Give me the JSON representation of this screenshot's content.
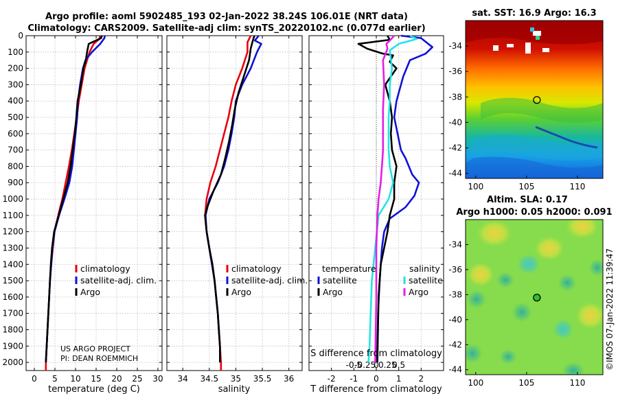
{
  "header": {
    "line1": "Argo profile: aoml 5902485_193 02-Jan-2022 38.24S 106.01E (NRT data)",
    "line2": "Climatology: CARS2009. Satellite-adj clim: synTS_20220102.nc (0.077d earlier)"
  },
  "colors": {
    "climatology": "#e8000b",
    "satellite": "#1010d8",
    "argo": "#000000",
    "sat_sal": "#22e4e4",
    "argo_sal": "#e41ee4"
  },
  "chart_data": [
    {
      "id": "temperature",
      "type": "line",
      "xlabel": "temperature (deg C)",
      "xlim": [
        -2,
        31
      ],
      "xticks": [
        0,
        5,
        10,
        15,
        20,
        25,
        30
      ],
      "ylim": [
        0,
        2050
      ],
      "yticks": [
        0,
        100,
        200,
        300,
        400,
        500,
        600,
        700,
        800,
        900,
        1000,
        1100,
        1200,
        1300,
        1400,
        1500,
        1600,
        1700,
        1800,
        1900,
        2000
      ],
      "legend": [
        "climatology",
        "satellite-adj. clim.",
        "Argo"
      ],
      "notes": [
        "US ARGO PROJECT",
        "PI: DEAN ROEMMICH"
      ],
      "series": [
        {
          "name": "climatology",
          "color": "#e8000b",
          "points": [
            [
              16.0,
              0
            ],
            [
              15.8,
              20
            ],
            [
              14.4,
              50
            ],
            [
              13.4,
              100
            ],
            [
              12.8,
              150
            ],
            [
              12.2,
              200
            ],
            [
              11.5,
              300
            ],
            [
              10.8,
              400
            ],
            [
              10.3,
              500
            ],
            [
              9.7,
              600
            ],
            [
              9.1,
              700
            ],
            [
              8.4,
              800
            ],
            [
              7.6,
              900
            ],
            [
              6.8,
              1000
            ],
            [
              5.8,
              1100
            ],
            [
              4.9,
              1200
            ],
            [
              4.5,
              1300
            ],
            [
              4.1,
              1400
            ],
            [
              3.8,
              1500
            ],
            [
              3.6,
              1600
            ],
            [
              3.4,
              1700
            ],
            [
              3.2,
              1800
            ],
            [
              3.0,
              1900
            ],
            [
              2.8,
              2000
            ],
            [
              2.8,
              2050
            ]
          ]
        },
        {
          "name": "satellite-adj. clim.",
          "color": "#1010d8",
          "points": [
            [
              17.1,
              0
            ],
            [
              17.0,
              15
            ],
            [
              16.0,
              50
            ],
            [
              14.0,
              100
            ],
            [
              12.4,
              150
            ],
            [
              11.8,
              200
            ],
            [
              11.1,
              300
            ],
            [
              10.6,
              400
            ],
            [
              10.4,
              500
            ],
            [
              10.0,
              600
            ],
            [
              9.6,
              700
            ],
            [
              9.2,
              800
            ],
            [
              8.5,
              900
            ],
            [
              7.3,
              1000
            ],
            [
              6.0,
              1100
            ],
            [
              4.9,
              1200
            ],
            [
              4.4,
              1300
            ],
            [
              4.1,
              1400
            ],
            [
              3.8,
              1500
            ],
            [
              3.6,
              1600
            ],
            [
              3.4,
              1700
            ],
            [
              3.2,
              1800
            ],
            [
              3.0,
              1900
            ],
            [
              2.8,
              2000
            ]
          ]
        },
        {
          "name": "Argo",
          "color": "#000000",
          "points": [
            [
              16.4,
              0
            ],
            [
              16.2,
              15
            ],
            [
              13.2,
              50
            ],
            [
              12.8,
              100
            ],
            [
              12.5,
              150
            ],
            [
              11.9,
              200
            ],
            [
              11.3,
              300
            ],
            [
              10.5,
              400
            ],
            [
              10.2,
              500
            ],
            [
              9.8,
              600
            ],
            [
              9.3,
              700
            ],
            [
              8.8,
              800
            ],
            [
              8.1,
              900
            ],
            [
              7.0,
              1000
            ],
            [
              5.9,
              1100
            ],
            [
              4.8,
              1200
            ],
            [
              4.3,
              1300
            ],
            [
              4.0,
              1400
            ],
            [
              3.8,
              1500
            ],
            [
              3.6,
              1600
            ],
            [
              3.4,
              1700
            ],
            [
              3.2,
              1800
            ],
            [
              3.0,
              1900
            ],
            [
              2.8,
              2000
            ]
          ]
        }
      ]
    },
    {
      "id": "salinity",
      "type": "line",
      "xlabel": "salinity",
      "xlim": [
        33.7,
        36.25
      ],
      "xticks": [
        34,
        34.5,
        35,
        35.5,
        36
      ],
      "xticklabels": [
        "34",
        "34.5",
        "35",
        "35.5",
        "36"
      ],
      "ylim": [
        0,
        2050
      ],
      "legend": [
        "climatology",
        "satellite-adj. clim.",
        "Argo"
      ],
      "series": [
        {
          "name": "climatology",
          "color": "#e8000b",
          "points": [
            [
              35.28,
              0
            ],
            [
              35.22,
              40
            ],
            [
              35.22,
              100
            ],
            [
              35.12,
              200
            ],
            [
              35.0,
              300
            ],
            [
              34.92,
              400
            ],
            [
              34.86,
              500
            ],
            [
              34.78,
              600
            ],
            [
              34.7,
              700
            ],
            [
              34.62,
              800
            ],
            [
              34.52,
              900
            ],
            [
              34.45,
              1000
            ],
            [
              34.42,
              1100
            ],
            [
              34.45,
              1200
            ],
            [
              34.5,
              1300
            ],
            [
              34.55,
              1400
            ],
            [
              34.6,
              1500
            ],
            [
              34.63,
              1600
            ],
            [
              34.66,
              1700
            ],
            [
              34.68,
              1800
            ],
            [
              34.7,
              1900
            ],
            [
              34.72,
              2000
            ],
            [
              34.72,
              2050
            ]
          ]
        },
        {
          "name": "satellite-adj. clim.",
          "color": "#1010d8",
          "points": [
            [
              35.43,
              0
            ],
            [
              35.36,
              30
            ],
            [
              35.48,
              50
            ],
            [
              35.4,
              100
            ],
            [
              35.28,
              200
            ],
            [
              35.12,
              300
            ],
            [
              35.0,
              400
            ],
            [
              34.97,
              500
            ],
            [
              34.92,
              600
            ],
            [
              34.86,
              700
            ],
            [
              34.78,
              800
            ],
            [
              34.66,
              900
            ],
            [
              34.5,
              1000
            ],
            [
              34.43,
              1100
            ],
            [
              34.45,
              1200
            ],
            [
              34.5,
              1300
            ],
            [
              34.55,
              1400
            ],
            [
              34.6,
              1500
            ],
            [
              34.63,
              1600
            ],
            [
              34.66,
              1700
            ],
            [
              34.68,
              1800
            ],
            [
              34.7,
              1900
            ],
            [
              34.7,
              2000
            ]
          ]
        },
        {
          "name": "Argo",
          "color": "#000000",
          "points": [
            [
              35.35,
              0
            ],
            [
              35.32,
              30
            ],
            [
              35.28,
              80
            ],
            [
              35.25,
              150
            ],
            [
              35.15,
              250
            ],
            [
              35.05,
              350
            ],
            [
              34.98,
              450
            ],
            [
              34.93,
              550
            ],
            [
              34.87,
              650
            ],
            [
              34.8,
              750
            ],
            [
              34.72,
              850
            ],
            [
              34.58,
              950
            ],
            [
              34.46,
              1050
            ],
            [
              34.42,
              1100
            ],
            [
              34.45,
              1200
            ],
            [
              34.5,
              1300
            ],
            [
              34.56,
              1400
            ],
            [
              34.6,
              1500
            ],
            [
              34.63,
              1600
            ],
            [
              34.66,
              1700
            ],
            [
              34.68,
              1800
            ],
            [
              34.7,
              1900
            ],
            [
              34.7,
              2000
            ]
          ]
        }
      ]
    },
    {
      "id": "difference",
      "type": "line",
      "xlabel": "T difference from climatology",
      "xlabel_top": "S difference from climatology",
      "xlim": [
        -3,
        3
      ],
      "xticks": [
        -2,
        -1,
        0,
        1,
        2
      ],
      "sticks": [
        -1,
        -0.5,
        0,
        0.5,
        1
      ],
      "sticklabels": [
        "-0.5",
        "-0.25",
        "0",
        "0.25",
        "0.5"
      ],
      "ylim": [
        0,
        2050
      ],
      "legend_titles": [
        "temperature",
        "salinity"
      ],
      "legend": [
        "satellite",
        "Argo",
        "satellite",
        "Argo"
      ],
      "series": [
        {
          "name": "satellite (temperature)",
          "color": "#1010d8",
          "points": [
            [
              1.1,
              0
            ],
            [
              2.0,
              15
            ],
            [
              2.5,
              70
            ],
            [
              2.2,
              110
            ],
            [
              1.5,
              150
            ],
            [
              1.2,
              250
            ],
            [
              0.9,
              400
            ],
            [
              0.8,
              500
            ],
            [
              0.95,
              600
            ],
            [
              1.1,
              700
            ],
            [
              1.3,
              750
            ],
            [
              1.6,
              850
            ],
            [
              1.9,
              900
            ],
            [
              1.7,
              980
            ],
            [
              1.3,
              1050
            ],
            [
              0.6,
              1120
            ],
            [
              0.35,
              1200
            ],
            [
              0.25,
              1300
            ],
            [
              0.15,
              1500
            ],
            [
              0.08,
              1700
            ],
            [
              0.03,
              2000
            ]
          ]
        },
        {
          "name": "Argo (temperature)",
          "color": "#000000",
          "points": [
            [
              0.5,
              0
            ],
            [
              0.6,
              25
            ],
            [
              -0.8,
              50
            ],
            [
              -0.4,
              80
            ],
            [
              0.3,
              110
            ],
            [
              0.75,
              120
            ],
            [
              0.6,
              160
            ],
            [
              0.9,
              200
            ],
            [
              0.4,
              300
            ],
            [
              0.6,
              400
            ],
            [
              0.7,
              500
            ],
            [
              0.65,
              600
            ],
            [
              0.7,
              700
            ],
            [
              0.9,
              800
            ],
            [
              0.8,
              900
            ],
            [
              0.8,
              1000
            ],
            [
              0.6,
              1100
            ],
            [
              0.5,
              1200
            ],
            [
              0.35,
              1300
            ],
            [
              0.2,
              1400
            ],
            [
              0.1,
              1600
            ],
            [
              0.05,
              2000
            ]
          ]
        },
        {
          "name": "satellite (salinity)",
          "color": "#22e4e4",
          "points": [
            [
              1.5,
              0
            ],
            [
              1.8,
              20
            ],
            [
              1.0,
              50
            ],
            [
              0.6,
              90
            ],
            [
              0.7,
              200
            ],
            [
              0.6,
              300
            ],
            [
              0.6,
              400
            ],
            [
              0.55,
              500
            ],
            [
              0.55,
              600
            ],
            [
              0.55,
              700
            ],
            [
              0.6,
              800
            ],
            [
              0.75,
              900
            ],
            [
              0.55,
              1000
            ],
            [
              0.1,
              1100
            ],
            [
              -0.05,
              1300
            ],
            [
              -0.2,
              1500
            ],
            [
              -0.25,
              1700
            ],
            [
              -0.3,
              1900
            ],
            [
              -0.35,
              2000
            ]
          ]
        },
        {
          "name": "Argo (salinity)",
          "color": "#e41ee4",
          "points": [
            [
              0.8,
              0
            ],
            [
              0.6,
              30
            ],
            [
              0.45,
              50
            ],
            [
              0.5,
              80
            ],
            [
              0.3,
              150
            ],
            [
              0.35,
              300
            ],
            [
              0.3,
              450
            ],
            [
              0.3,
              600
            ],
            [
              0.3,
              700
            ],
            [
              0.25,
              800
            ],
            [
              0.2,
              900
            ],
            [
              0.1,
              1000
            ],
            [
              0.05,
              1100
            ],
            [
              0.0,
              1300
            ],
            [
              0.0,
              1600
            ],
            [
              -0.05,
              2000
            ]
          ]
        }
      ]
    }
  ],
  "sst_map": {
    "title": "sat. SST: 16.9 Argo: 16.3",
    "xlim": [
      99,
      112.5
    ],
    "ylim": [
      -44.4,
      -32
    ],
    "xticks": [
      100,
      105,
      110
    ],
    "yticks": [
      -34,
      -36,
      -38,
      -40,
      -42,
      -44
    ],
    "argo_lon": 106.01,
    "argo_lat": -38.24
  },
  "sla_map": {
    "title1": "Altim. SLA: 0.17",
    "title2": "Argo h1000: 0.05 h2000: 0.091",
    "xlim": [
      99,
      112.5
    ],
    "ylim": [
      -44.4,
      -32
    ],
    "xticks": [
      100,
      105,
      110
    ],
    "yticks": [
      -34,
      -36,
      -38,
      -40,
      -42,
      -44
    ],
    "argo_lon": 106.01,
    "argo_lat": -38.24
  },
  "stamp": "©IMOS 07-Jan-2022 11:39:47"
}
